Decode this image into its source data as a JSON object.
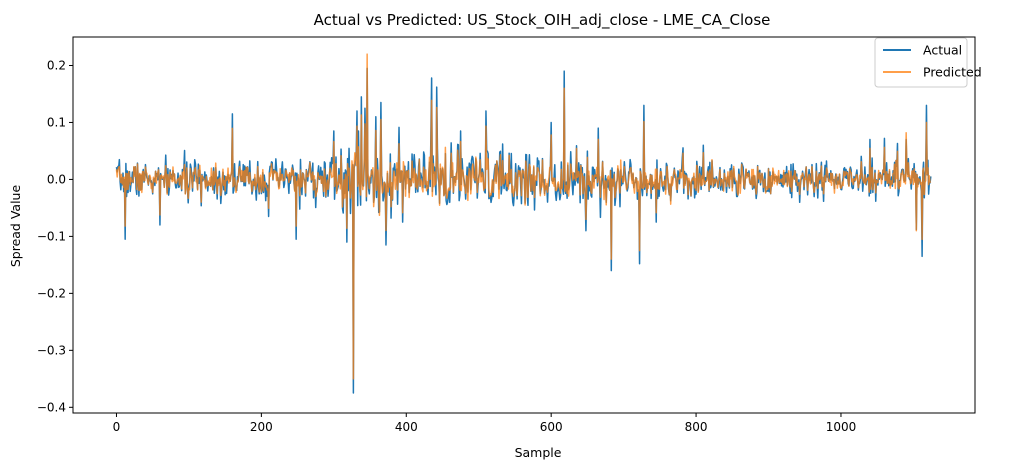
{
  "chart_data": {
    "type": "line",
    "title": "Actual vs Predicted: US_Stock_OIH_adj_close - LME_CA_Close",
    "xlabel": "Sample",
    "ylabel": "Spread Value",
    "xlim": [
      -60,
      1185
    ],
    "ylim": [
      -0.41,
      0.25
    ],
    "x_ticks": [
      0,
      200,
      400,
      600,
      800,
      1000
    ],
    "x_tick_labels": [
      "0",
      "200",
      "400",
      "600",
      "800",
      "1000"
    ],
    "y_ticks": [
      -0.4,
      -0.3,
      -0.2,
      -0.1,
      0.0,
      0.1,
      0.2
    ],
    "y_tick_labels": [
      "−0.4",
      "−0.3",
      "−0.2",
      "−0.1",
      "0.0",
      "0.1",
      "0.2"
    ],
    "grid": false,
    "legend_position": "top-right",
    "n_points": 1125,
    "x_range": [
      0,
      1124
    ],
    "seed": 7,
    "series": [
      {
        "name": "Actual",
        "color": "#1f77b4",
        "opacity": 1.0,
        "base_noise": [
          [
            0,
            0.02
          ],
          [
            280,
            0.025
          ],
          [
            320,
            0.05
          ],
          [
            420,
            0.035
          ],
          [
            560,
            0.035
          ],
          [
            700,
            0.028
          ],
          [
            850,
            0.02
          ],
          [
            1124,
            0.022
          ]
        ],
        "spikes": [
          [
            12,
            -0.105
          ],
          [
            60,
            -0.08
          ],
          [
            160,
            0.115
          ],
          [
            210,
            -0.065
          ],
          [
            248,
            -0.105
          ],
          [
            300,
            0.085
          ],
          [
            318,
            -0.11
          ],
          [
            327,
            -0.375
          ],
          [
            332,
            0.12
          ],
          [
            338,
            0.145
          ],
          [
            343,
            0.125
          ],
          [
            346,
            0.195
          ],
          [
            358,
            0.11
          ],
          [
            365,
            0.135
          ],
          [
            372,
            -0.115
          ],
          [
            395,
            -0.075
          ],
          [
            435,
            0.178
          ],
          [
            442,
            0.162
          ],
          [
            475,
            0.085
          ],
          [
            510,
            0.12
          ],
          [
            600,
            0.1
          ],
          [
            618,
            0.19
          ],
          [
            648,
            -0.09
          ],
          [
            665,
            0.09
          ],
          [
            683,
            -0.16
          ],
          [
            722,
            -0.148
          ],
          [
            728,
            0.13
          ],
          [
            745,
            -0.075
          ],
          [
            810,
            0.06
          ],
          [
            1040,
            0.07
          ],
          [
            1060,
            0.072
          ],
          [
            1078,
            0.063
          ],
          [
            1090,
            0.07
          ],
          [
            1104,
            -0.088
          ],
          [
            1112,
            -0.135
          ],
          [
            1118,
            0.13
          ]
        ]
      },
      {
        "name": "Predicted",
        "color": "#ff7f0e",
        "opacity": 0.75,
        "spike_scale": {
          "346": 0.22,
          "327": -0.35,
          "618": 0.16,
          "683": -0.14,
          "722": -0.125,
          "1104": -0.09,
          "1118": 0.1,
          "1090": 0.082
        }
      }
    ]
  }
}
